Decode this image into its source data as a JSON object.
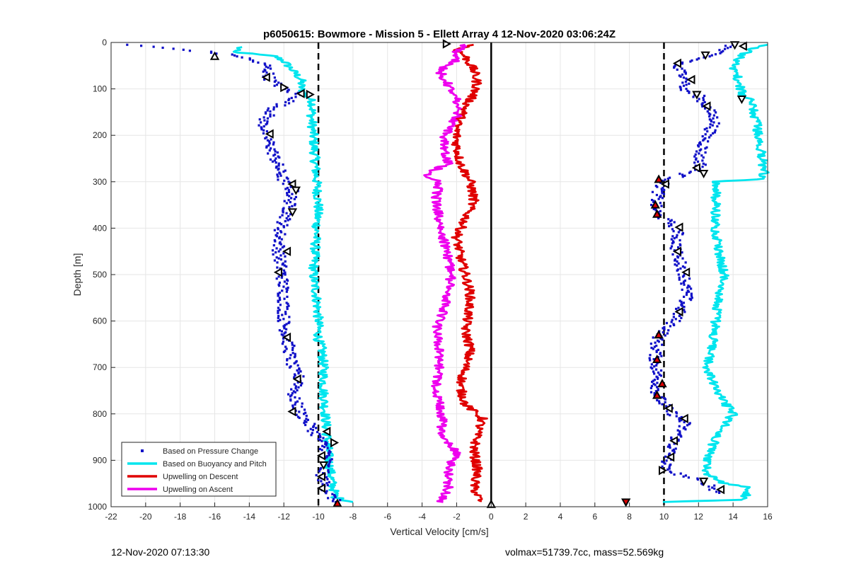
{
  "chart_data": {
    "type": "scatter",
    "title": "p6050615: Bowmore - Mission 5 - Ellett Array 4 12-Nov-2020 03:06:24Z",
    "xlabel": "Vertical Velocity [cm/s]",
    "ylabel": "Depth [m]",
    "xlim": [
      -22,
      16
    ],
    "ylim": [
      0,
      1000
    ],
    "y_reversed": true,
    "xticks": [
      -22,
      -20,
      -18,
      -16,
      -14,
      -12,
      -10,
      -8,
      -6,
      -4,
      -2,
      0,
      2,
      4,
      6,
      8,
      10,
      12,
      14,
      16
    ],
    "yticks": [
      0,
      100,
      200,
      300,
      400,
      500,
      600,
      700,
      800,
      900,
      1000
    ],
    "grid": true,
    "legend_position": "bottom-left",
    "reference_lines": [
      {
        "x": -10,
        "style": "dashed",
        "color": "#000000"
      },
      {
        "x": 0,
        "style": "solid",
        "color": "#000000"
      },
      {
        "x": 10,
        "style": "dashed",
        "color": "#000000"
      }
    ],
    "series": [
      {
        "name": "Based on Pressure Change",
        "kind": "points",
        "color": "#1010c8",
        "profiles": [
          {
            "depth": [
              5,
              20,
              30,
              50,
              80,
              100,
              115,
              140,
              170,
              200,
              250,
              300,
              320,
              370,
              400,
              450,
              500,
              550,
              600,
              640,
              700,
              730,
              760,
              800,
              850,
              880,
              900,
              930,
              960,
              990
            ],
            "x": [
              -21,
              -16.5,
              -14.5,
              -13,
              -12.8,
              -12,
              -11,
              -12.5,
              -13.2,
              -13,
              -12.5,
              -12,
              -11.5,
              -11.8,
              -12.2,
              -12.3,
              -12.1,
              -12,
              -12,
              -11.8,
              -11.5,
              -11,
              -11.5,
              -11,
              -10,
              -9.5,
              -9.5,
              -9.8,
              -9.6,
              -9
            ]
          },
          {
            "depth": [
              5,
              30,
              50,
              80,
              100,
              115,
              140,
              170,
              200,
              250,
              270,
              300,
              320,
              350,
              370,
              400,
              450,
              500,
              550,
              600,
              640,
              680,
              720,
              760,
              790,
              820,
              860,
              890,
              920,
              950,
              970
            ],
            "x": [
              14,
              12.5,
              10.6,
              11.5,
              11,
              12,
              12.5,
              13,
              12.5,
              12,
              12.2,
              10,
              9.7,
              9.5,
              9.6,
              10.8,
              10.7,
              11.2,
              11.3,
              10.6,
              9.6,
              9.5,
              9.6,
              9.6,
              10.2,
              11.2,
              10.6,
              10.3,
              10,
              12.5,
              13.2
            ]
          }
        ]
      },
      {
        "name": "Based on Buoyancy and Pitch",
        "kind": "line",
        "color": "#00e5ee",
        "profiles": [
          {
            "depth": [
              10,
              20,
              30,
              40,
              60,
              80,
              100,
              130,
              160,
              200,
              250,
              300,
              350,
              400,
              450,
              500,
              550,
              600,
              640,
              660,
              700,
              750,
              800,
              850,
              900,
              950,
              980,
              990
            ],
            "x": [
              -14.5,
              -15,
              -12.5,
              -12,
              -11.5,
              -11,
              -11,
              -10.3,
              -10.4,
              -10.3,
              -10.2,
              -10.1,
              -10,
              -10.1,
              -10.2,
              -10.3,
              -10.1,
              -10,
              -10,
              -9.8,
              -9.7,
              -9.7,
              -9.6,
              -9.5,
              -9.4,
              -9.2,
              -9,
              -8
            ]
          },
          {
            "depth": [
              990,
              985,
              975,
              960,
              950,
              930,
              900,
              850,
              800,
              750,
              700,
              650,
              600,
              550,
              500,
              450,
              400,
              350,
              300,
              295,
              280,
              250,
              200,
              150,
              125,
              110,
              80,
              50,
              30,
              15,
              8,
              5
            ],
            "x": [
              10,
              14.5,
              14.8,
              15,
              13.5,
              12.5,
              12.5,
              13,
              14,
              13,
              12.5,
              12.8,
              13,
              13.2,
              13.5,
              13.2,
              13,
              13,
              13,
              15.5,
              15.8,
              15.7,
              15.5,
              15.2,
              15,
              14.5,
              14.3,
              14,
              14.5,
              15,
              15.5,
              16
            ]
          }
        ]
      },
      {
        "name": "Upwelling on Descent",
        "kind": "line",
        "color": "#e00000",
        "profiles": [
          {
            "depth": [
              5,
              15,
              30,
              60,
              90,
              110,
              140,
              180,
              220,
              260,
              300,
              340,
              380,
              420,
              460,
              500,
              540,
              580,
              620,
              660,
              700,
              740,
              780,
              810,
              840,
              880,
              920,
              960,
              990
            ],
            "x": [
              -1,
              -2,
              -1.5,
              -1,
              -0.8,
              -1,
              -1.5,
              -2,
              -2,
              -1.8,
              -1.2,
              -1,
              -1.5,
              -2,
              -1.8,
              -1.5,
              -1.2,
              -1.3,
              -1.5,
              -1.2,
              -1.5,
              -1.8,
              -1.5,
              -0.5,
              -0.8,
              -1,
              -0.8,
              -1,
              -0.6
            ]
          }
        ]
      },
      {
        "name": "Upwelling on Ascent",
        "kind": "line",
        "color": "#ee00ee",
        "profiles": [
          {
            "depth": [
              990,
              960,
              920,
              880,
              850,
              820,
              780,
              740,
              700,
              660,
              620,
              580,
              540,
              500,
              460,
              420,
              380,
              340,
              300,
              290,
              260,
              230,
              200,
              160,
              120,
              90,
              60,
              40,
              20,
              10,
              5
            ],
            "x": [
              -3,
              -2.5,
              -2.5,
              -2,
              -3,
              -2.8,
              -3,
              -3.2,
              -3,
              -3,
              -3.2,
              -2.8,
              -2.5,
              -2.3,
              -2.5,
              -2.8,
              -3,
              -3.2,
              -3,
              -4,
              -2.5,
              -2.8,
              -2.7,
              -2,
              -2,
              -2.5,
              -3,
              -2,
              -2,
              -1.5,
              -1.5
            ]
          }
        ]
      }
    ],
    "markers": [
      {
        "x": -16,
        "depth": 30,
        "orientation": "up"
      },
      {
        "x": -13,
        "depth": 75,
        "orientation": "left"
      },
      {
        "x": -12,
        "depth": 97,
        "orientation": "right"
      },
      {
        "x": -11,
        "depth": 110,
        "orientation": "left"
      },
      {
        "x": -10.5,
        "depth": 112,
        "orientation": "right"
      },
      {
        "x": -12.8,
        "depth": 197,
        "orientation": "left"
      },
      {
        "x": -11.5,
        "depth": 305,
        "orientation": "left"
      },
      {
        "x": -11.3,
        "depth": 318,
        "orientation": "down"
      },
      {
        "x": -11.5,
        "depth": 365,
        "orientation": "down"
      },
      {
        "x": -11.8,
        "depth": 450,
        "orientation": "left"
      },
      {
        "x": -12.3,
        "depth": 495,
        "orientation": "left"
      },
      {
        "x": -11.8,
        "depth": 635,
        "orientation": "left"
      },
      {
        "x": -11.2,
        "depth": 725,
        "orientation": "left"
      },
      {
        "x": -11.5,
        "depth": 795,
        "orientation": "left"
      },
      {
        "x": -9.5,
        "depth": 838,
        "orientation": "left"
      },
      {
        "x": -9.1,
        "depth": 862,
        "orientation": "right"
      },
      {
        "x": -9.8,
        "depth": 890,
        "orientation": "left"
      },
      {
        "x": -9.7,
        "depth": 910,
        "orientation": "down"
      },
      {
        "x": -9.8,
        "depth": 935,
        "orientation": "left"
      },
      {
        "x": -9.8,
        "depth": 960,
        "orientation": "left"
      },
      {
        "x": -8.9,
        "depth": 993,
        "orientation": "up",
        "fill": "#e00000"
      },
      {
        "x": -2.6,
        "depth": 3,
        "orientation": "right"
      },
      {
        "x": 0,
        "depth": 995,
        "orientation": "up"
      },
      {
        "x": 7.8,
        "depth": 990,
        "orientation": "down",
        "fill": "#e00000"
      },
      {
        "x": 14.1,
        "depth": 5,
        "orientation": "down"
      },
      {
        "x": 14.6,
        "depth": 8,
        "orientation": "left"
      },
      {
        "x": 12.4,
        "depth": 27,
        "orientation": "down"
      },
      {
        "x": 10.8,
        "depth": 45,
        "orientation": "left"
      },
      {
        "x": 11.6,
        "depth": 80,
        "orientation": "left"
      },
      {
        "x": 11.9,
        "depth": 112,
        "orientation": "down"
      },
      {
        "x": 14.5,
        "depth": 122,
        "orientation": "down"
      },
      {
        "x": 12.5,
        "depth": 137,
        "orientation": "left"
      },
      {
        "x": 11.9,
        "depth": 270,
        "orientation": "left"
      },
      {
        "x": 12.3,
        "depth": 282,
        "orientation": "down"
      },
      {
        "x": 9.7,
        "depth": 295,
        "orientation": "up",
        "fill": "#e00000"
      },
      {
        "x": 10.1,
        "depth": 305,
        "orientation": "left"
      },
      {
        "x": 9.5,
        "depth": 350,
        "orientation": "up",
        "fill": "#e00000"
      },
      {
        "x": 9.6,
        "depth": 370,
        "orientation": "up",
        "fill": "#e00000"
      },
      {
        "x": 10.9,
        "depth": 398,
        "orientation": "left"
      },
      {
        "x": 10.8,
        "depth": 450,
        "orientation": "left"
      },
      {
        "x": 11.3,
        "depth": 495,
        "orientation": "left"
      },
      {
        "x": 10.9,
        "depth": 580,
        "orientation": "left"
      },
      {
        "x": 9.7,
        "depth": 630,
        "orientation": "up",
        "fill": "#e00000"
      },
      {
        "x": 9.6,
        "depth": 683,
        "orientation": "up",
        "fill": "#e00000"
      },
      {
        "x": 9.9,
        "depth": 735,
        "orientation": "up",
        "fill": "#e00000"
      },
      {
        "x": 9.6,
        "depth": 760,
        "orientation": "up",
        "fill": "#e00000"
      },
      {
        "x": 10.3,
        "depth": 788,
        "orientation": "left"
      },
      {
        "x": 11.2,
        "depth": 810,
        "orientation": "left"
      },
      {
        "x": 10.6,
        "depth": 858,
        "orientation": "left"
      },
      {
        "x": 10.4,
        "depth": 893,
        "orientation": "left"
      },
      {
        "x": 9.9,
        "depth": 922,
        "orientation": "right"
      },
      {
        "x": 12.3,
        "depth": 945,
        "orientation": "down"
      },
      {
        "x": 13.3,
        "depth": 963,
        "orientation": "left"
      }
    ]
  },
  "footer": {
    "timestamp": "12-Nov-2020 07:13:30",
    "info": "volmax=51739.7cc, mass=52.569kg"
  }
}
